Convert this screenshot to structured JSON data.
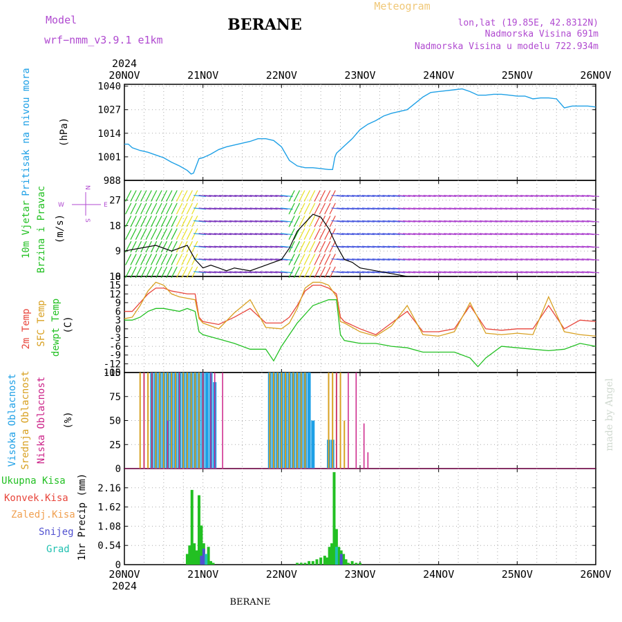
{
  "header": {
    "model_label": "Model",
    "model_value": "wrf−nmm_v3.9.1  e1km",
    "title": "BERANE",
    "meteogram": "Meteogram",
    "lonlat": "lon,lat (19.85E, 42.8312N)",
    "altitude": "Nadmorska Visina 691m",
    "model_altitude": "Nadmorska Visina u modelu 722.934m",
    "year_top": "2024",
    "year_bottom": "2024",
    "footer_station": "BERANE",
    "watermark": "made by Angel"
  },
  "colors": {
    "pressure": "#1ea0e6",
    "wind_label": "#22c022",
    "t2m": "#e8443a",
    "sfc": "#d8a020",
    "dewpt": "#22c022",
    "high_cloud": "#1ea0e6",
    "mid_cloud": "#d8a020",
    "low_cloud": "#cc2288",
    "purple": "#b04ad0",
    "orange": "#f0a050"
  },
  "chart_data": [
    {
      "type": "line",
      "panel": "pressure",
      "x_ticks": [
        "20NOV",
        "21NOV",
        "22NOV",
        "23NOV",
        "24NOV",
        "25NOV",
        "26NOV"
      ],
      "ylabel_colored": "Pritisak na nivou mora",
      "ylabel_unit": "(hPa)",
      "yticks": [
        988,
        1001,
        1014,
        1027,
        1040
      ],
      "ylim": [
        988,
        1041
      ],
      "grid": true,
      "series": [
        {
          "x": [
            0,
            0.05,
            0.1,
            0.2,
            0.3,
            0.4,
            0.5,
            0.6,
            0.7,
            0.8,
            0.85,
            0.88,
            0.95,
            1.0,
            1.1,
            1.2,
            1.3,
            1.4,
            1.5,
            1.6,
            1.7,
            1.8,
            1.9,
            2.0,
            2.1,
            2.2,
            2.3,
            2.4,
            2.5,
            2.6,
            2.65,
            2.68,
            2.7,
            2.8,
            2.9,
            3.0,
            3.1,
            3.2,
            3.3,
            3.4,
            3.5,
            3.6,
            3.7,
            3.8,
            3.9,
            4.0,
            4.1,
            4.2,
            4.3,
            4.4,
            4.5,
            4.6,
            4.7,
            4.8,
            4.9,
            5.0,
            5.1,
            5.2,
            5.3,
            5.4,
            5.5,
            5.6,
            5.7,
            5.8,
            5.9,
            6.0
          ],
          "y": [
            1008,
            1008,
            1006,
            1004.5,
            1003.5,
            1002,
            1000.5,
            998,
            996,
            993.5,
            991.5,
            992,
            1000,
            1000.5,
            1002.5,
            1005,
            1006.5,
            1007.5,
            1008.5,
            1009.5,
            1011,
            1011,
            1010,
            1006.5,
            999,
            996,
            995,
            995,
            994.5,
            994,
            994,
            1001,
            1003,
            1007,
            1011,
            1016,
            1019,
            1021,
            1023.5,
            1025,
            1026,
            1027,
            1030.5,
            1034,
            1036.5,
            1037,
            1037.5,
            1038,
            1038.5,
            1037,
            1035,
            1035,
            1035.5,
            1035.5,
            1035,
            1034.5,
            1034.5,
            1033,
            1033.5,
            1033.5,
            1033,
            1028,
            1029,
            1029,
            1029,
            1028.5
          ]
        }
      ]
    },
    {
      "type": "line",
      "panel": "wind",
      "ylabel_colored": "10m Vjetar",
      "ylabel_colored2": "Brzina i Pravac",
      "ylabel_unit": "(m/s)",
      "compass": [
        "W",
        "N",
        "S",
        "E"
      ],
      "yticks": [
        0,
        9,
        18,
        27
      ],
      "ylim": [
        0,
        34
      ],
      "grid": true,
      "series": [
        {
          "name": "speed",
          "x": [
            0,
            0.2,
            0.4,
            0.6,
            0.8,
            0.9,
            1.0,
            1.1,
            1.2,
            1.3,
            1.4,
            1.6,
            1.8,
            2.0,
            2.1,
            2.2,
            2.3,
            2.4,
            2.5,
            2.6,
            2.7,
            2.8,
            2.9,
            3.0,
            3.2,
            3.4,
            3.6
          ],
          "y": [
            9,
            10,
            11,
            9,
            11,
            6,
            3,
            4,
            3,
            2,
            3,
            2,
            4,
            6,
            10,
            16,
            19,
            22,
            21,
            17,
            11,
            6,
            5,
            3,
            2,
            1,
            0
          ]
        }
      ]
    },
    {
      "type": "line",
      "panel": "temperature",
      "ylabel_colored_a": "2m Temp",
      "ylabel_colored_b": "SFC Temp",
      "ylabel_colored_c": "dewpt Temp",
      "ylabel_unit": "(C)",
      "yticks": [
        -15,
        -12,
        -9,
        -6,
        -3,
        0,
        3,
        6,
        9,
        12,
        15,
        18
      ],
      "ylim": [
        -15,
        18
      ],
      "grid": true,
      "series": [
        {
          "name": "2m Temp",
          "x": [
            0,
            0.1,
            0.2,
            0.3,
            0.4,
            0.5,
            0.6,
            0.7,
            0.8,
            0.9,
            0.95,
            1.0,
            1.2,
            1.4,
            1.6,
            1.8,
            2.0,
            2.1,
            2.2,
            2.3,
            2.4,
            2.5,
            2.6,
            2.7,
            2.75,
            2.8,
            3.0,
            3.2,
            3.4,
            3.6,
            3.8,
            4.0,
            4.2,
            4.4,
            4.6,
            4.8,
            5.0,
            5.2,
            5.4,
            5.6,
            5.8,
            6.0
          ],
          "y": [
            6,
            6,
            9,
            12,
            14,
            14,
            13,
            12.5,
            12,
            12,
            4,
            2.5,
            1.5,
            4,
            7,
            2,
            2,
            4,
            8,
            13,
            15,
            15,
            14,
            12,
            4,
            2.5,
            0,
            -2,
            2,
            6,
            -1,
            -1,
            0,
            8,
            0,
            -0.5,
            0,
            0,
            8,
            0,
            3,
            2.5
          ]
        },
        {
          "name": "SFC Temp",
          "x": [
            0,
            0.1,
            0.2,
            0.3,
            0.4,
            0.5,
            0.6,
            0.7,
            0.8,
            0.9,
            0.95,
            1.0,
            1.2,
            1.4,
            1.6,
            1.8,
            2.0,
            2.1,
            2.2,
            2.3,
            2.4,
            2.5,
            2.6,
            2.7,
            2.75,
            2.8,
            3.0,
            3.2,
            3.4,
            3.6,
            3.8,
            4.0,
            4.2,
            4.4,
            4.6,
            4.8,
            5.0,
            5.2,
            5.4,
            5.6,
            5.8,
            6.0
          ],
          "y": [
            3.5,
            4,
            8,
            13,
            16,
            15,
            12,
            11,
            10.5,
            10,
            3.5,
            2,
            0,
            5.5,
            10,
            0.5,
            0,
            2,
            7,
            14,
            16,
            16,
            15,
            11,
            2.5,
            2,
            -1,
            -2.5,
            1,
            8,
            -2,
            -2.5,
            -1,
            9,
            -1.5,
            -2,
            -1.5,
            -2,
            11,
            -1,
            -2,
            -2.5
          ]
        },
        {
          "name": "dewpt Temp",
          "x": [
            0,
            0.1,
            0.2,
            0.3,
            0.4,
            0.5,
            0.6,
            0.7,
            0.8,
            0.9,
            0.95,
            1.0,
            1.2,
            1.4,
            1.6,
            1.8,
            1.9,
            2.0,
            2.2,
            2.4,
            2.6,
            2.7,
            2.75,
            2.8,
            3.0,
            3.2,
            3.4,
            3.6,
            3.8,
            4.0,
            4.2,
            4.4,
            4.5,
            4.6,
            4.8,
            5.0,
            5.2,
            5.4,
            5.6,
            5.8,
            6.0
          ],
          "y": [
            3,
            3,
            4,
            6,
            7,
            7,
            6.5,
            6,
            7,
            6,
            -1,
            -2,
            -3.5,
            -5,
            -7,
            -7,
            -11,
            -6,
            2,
            8,
            10,
            10,
            -2,
            -4,
            -5,
            -5,
            -6,
            -6.5,
            -8,
            -8,
            -8,
            -10,
            -13,
            -10,
            -6,
            -6.5,
            -7,
            -7.5,
            -7,
            -5,
            -6
          ]
        }
      ]
    },
    {
      "type": "bar",
      "panel": "clouds",
      "ylabel_colored_a": "Visoka Oblacnost",
      "ylabel_colored_b": "Srednja Oblacnost",
      "ylabel_colored_c": "Niska Oblacnost",
      "ylabel_unit": "(%)",
      "yticks": [
        0,
        25,
        50,
        75,
        100
      ],
      "ylim": [
        0,
        100
      ],
      "grid": true,
      "series": [
        {
          "name": "Visoka Oblacnost",
          "x": [
            0.35,
            0.4,
            0.45,
            0.5,
            0.55,
            0.6,
            0.65,
            0.7,
            0.75,
            0.8,
            0.85,
            0.9,
            0.95,
            1.0,
            1.05,
            1.1,
            1.15,
            1.85,
            1.9,
            1.95,
            2.0,
            2.05,
            2.1,
            2.15,
            2.2,
            2.25,
            2.3,
            2.35,
            2.4,
            2.6,
            2.65
          ],
          "y": [
            100,
            100,
            100,
            100,
            100,
            100,
            100,
            100,
            100,
            100,
            100,
            100,
            100,
            100,
            100,
            100,
            90,
            100,
            100,
            100,
            100,
            100,
            100,
            100,
            100,
            100,
            100,
            100,
            50,
            30,
            30
          ]
        },
        {
          "name": "Srednja Oblacnost",
          "x": [
            0.2,
            0.25,
            0.3,
            0.35,
            0.4,
            0.45,
            0.5,
            0.55,
            0.6,
            0.65,
            0.7,
            0.75,
            0.8,
            0.85,
            0.9,
            0.95,
            1.0,
            1.85,
            1.9,
            1.95,
            2.0,
            2.05,
            2.1,
            2.15,
            2.2,
            2.25,
            2.3,
            2.6,
            2.65,
            2.7,
            2.75,
            2.8
          ],
          "y": [
            100,
            100,
            100,
            100,
            100,
            100,
            100,
            100,
            100,
            100,
            100,
            100,
            100,
            100,
            100,
            100,
            100,
            100,
            100,
            100,
            100,
            100,
            100,
            100,
            100,
            100,
            100,
            100,
            100,
            100,
            100,
            50
          ]
        },
        {
          "name": "Niska Oblacnost",
          "x": [
            0.25,
            0.35,
            0.55,
            0.7,
            1.0,
            1.1,
            1.15,
            1.25,
            2.7,
            2.85,
            2.95,
            3.05,
            3.1
          ],
          "y": [
            100,
            100,
            50,
            100,
            100,
            100,
            100,
            100,
            100,
            100,
            100,
            47,
            17
          ]
        }
      ]
    },
    {
      "type": "bar",
      "panel": "precipitation",
      "legend": [
        "Ukupna Kisa",
        "Konvek.Kisa",
        "Zaledj.Kisa",
        "Snijeg",
        "Grad"
      ],
      "ylabel": "1hr Precip (mm)",
      "yticks": [
        0,
        0.54,
        1.08,
        1.62,
        2.16
      ],
      "ylim": [
        0,
        2.7
      ],
      "grid": true,
      "series": [
        {
          "name": "Ukupna Kisa",
          "x": [
            0.8,
            0.83,
            0.86,
            0.89,
            0.92,
            0.95,
            0.98,
            1.01,
            1.04,
            1.07,
            1.1,
            1.13,
            2.2,
            2.25,
            2.3,
            2.35,
            2.4,
            2.45,
            2.5,
            2.55,
            2.58,
            2.61,
            2.64,
            2.67,
            2.7,
            2.73,
            2.76,
            2.79,
            2.82,
            2.85,
            2.9,
            2.95,
            3.0
          ],
          "y": [
            0.3,
            0.54,
            2.1,
            0.6,
            0.4,
            1.95,
            1.1,
            0.6,
            0.2,
            0.5,
            0.1,
            0.05,
            0.05,
            0.05,
            0.05,
            0.1,
            0.1,
            0.15,
            0.2,
            0.25,
            0.2,
            0.5,
            0.6,
            2.6,
            1.0,
            0.5,
            0.4,
            0.3,
            0.15,
            0.05,
            0.1,
            0.05,
            0.05
          ]
        },
        {
          "name": "Snijeg",
          "x": [
            0.98,
            1.01,
            2.76
          ],
          "y": [
            0.25,
            0.45,
            0.3
          ]
        },
        {
          "name": "Grad",
          "x": [
            1.04,
            2.7
          ],
          "y": [
            0.3,
            0.5
          ]
        }
      ]
    }
  ]
}
